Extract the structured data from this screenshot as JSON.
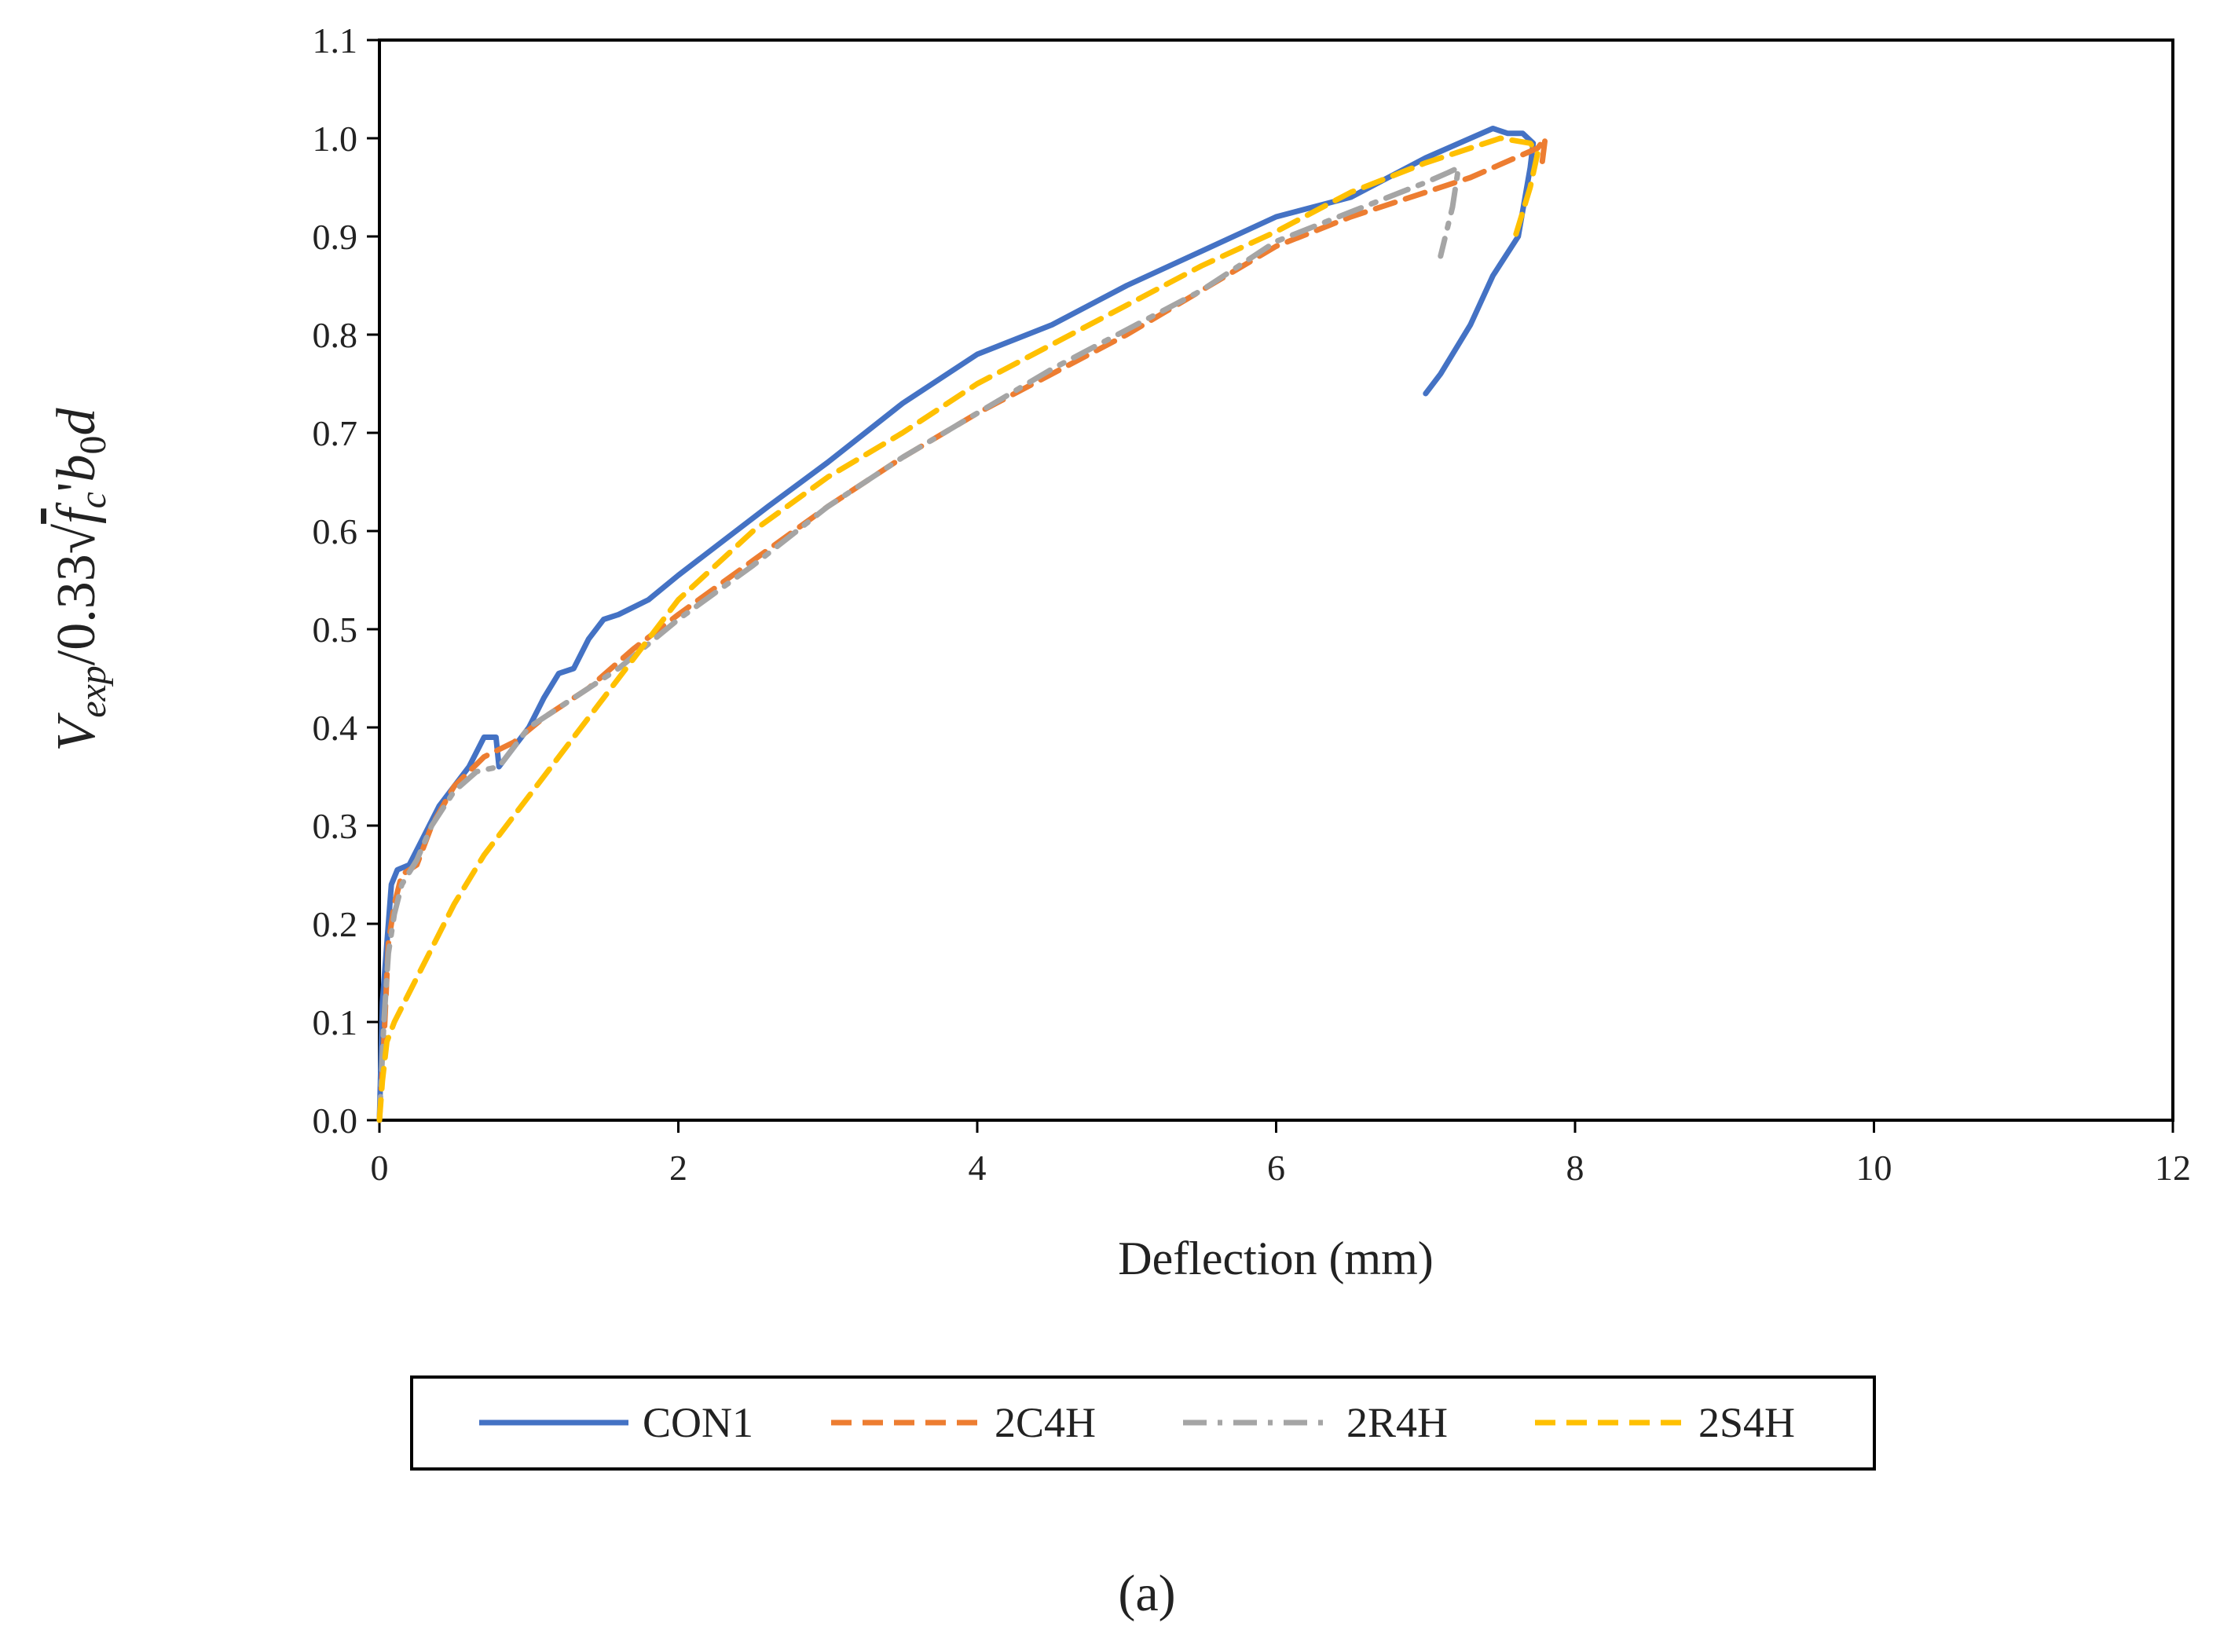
{
  "chart_data": {
    "type": "line",
    "title": "",
    "xlabel": "Deflection (mm)",
    "ylabel": {
      "base": "V",
      "sub": "exp",
      "mid": "/0.33",
      "radicand": "f",
      "radicand_sub": "c",
      "prime": "'",
      "tail_b": "b",
      "tail_sub": "0",
      "tail_d": "d"
    },
    "caption": "(a)",
    "xlim": [
      0,
      12
    ],
    "ylim": [
      0,
      1.1
    ],
    "x_ticks": [
      0,
      2,
      4,
      6,
      8,
      10,
      12
    ],
    "y_ticks": [
      0.0,
      0.1,
      0.2,
      0.3,
      0.4,
      0.5,
      0.6,
      0.7,
      0.8,
      0.9,
      1.0,
      1.1
    ],
    "x_tick_labels": [
      "0",
      "2",
      "4",
      "6",
      "8",
      "10",
      "12"
    ],
    "y_tick_labels": [
      "0.0",
      "0.1",
      "0.2",
      "0.3",
      "0.4",
      "0.5",
      "0.6",
      "0.7",
      "0.8",
      "0.9",
      "1.0",
      "1.1"
    ],
    "grid": false,
    "legend_position": "bottom",
    "series": [
      {
        "name": "CON1",
        "color": "#4472C4",
        "style": "solid",
        "x": [
          0,
          0.02,
          0.05,
          0.08,
          0.12,
          0.2,
          0.3,
          0.4,
          0.5,
          0.6,
          0.7,
          0.78,
          0.8,
          0.9,
          1.0,
          1.1,
          1.2,
          1.3,
          1.4,
          1.5,
          1.6,
          1.8,
          2.0,
          2.3,
          2.6,
          3.0,
          3.5,
          4.0,
          4.5,
          5.0,
          5.5,
          6.0,
          6.5,
          7.0,
          7.3,
          7.45,
          7.55,
          7.65,
          7.72,
          7.7,
          7.62,
          7.45,
          7.3,
          7.1,
          7.0
        ],
        "y": [
          0.0,
          0.12,
          0.18,
          0.24,
          0.255,
          0.26,
          0.29,
          0.32,
          0.34,
          0.36,
          0.39,
          0.39,
          0.36,
          0.38,
          0.4,
          0.43,
          0.455,
          0.46,
          0.49,
          0.51,
          0.515,
          0.53,
          0.555,
          0.59,
          0.625,
          0.67,
          0.73,
          0.78,
          0.81,
          0.85,
          0.885,
          0.92,
          0.94,
          0.98,
          1.0,
          1.01,
          1.005,
          1.005,
          0.995,
          0.97,
          0.9,
          0.86,
          0.81,
          0.76,
          0.74
        ]
      },
      {
        "name": "2C4H",
        "color": "#ED7D31",
        "style": "dashed",
        "x": [
          0,
          0.03,
          0.06,
          0.1,
          0.15,
          0.25,
          0.35,
          0.5,
          0.7,
          0.9,
          1.1,
          1.4,
          1.7,
          2.0,
          2.5,
          3.0,
          3.5,
          4.0,
          4.5,
          5.0,
          5.5,
          6.0,
          6.5,
          7.0,
          7.3,
          7.6,
          7.75,
          7.8,
          7.78
        ],
        "y": [
          0.0,
          0.08,
          0.18,
          0.22,
          0.25,
          0.26,
          0.3,
          0.34,
          0.37,
          0.385,
          0.41,
          0.44,
          0.48,
          0.515,
          0.57,
          0.625,
          0.675,
          0.72,
          0.76,
          0.8,
          0.845,
          0.89,
          0.92,
          0.945,
          0.96,
          0.98,
          0.99,
          1.0,
          0.975
        ]
      },
      {
        "name": "2R4H",
        "color": "#A5A5A5",
        "style": "dashdot",
        "x": [
          0,
          0.03,
          0.06,
          0.1,
          0.15,
          0.25,
          0.35,
          0.5,
          0.65,
          0.8,
          1.0,
          1.3,
          1.6,
          2.0,
          2.5,
          3.0,
          3.5,
          4.0,
          4.5,
          5.0,
          5.5,
          6.0,
          6.5,
          7.0,
          7.15,
          7.22,
          7.18,
          7.1
        ],
        "y": [
          0.0,
          0.1,
          0.17,
          0.21,
          0.24,
          0.265,
          0.3,
          0.335,
          0.355,
          0.36,
          0.4,
          0.43,
          0.46,
          0.51,
          0.565,
          0.625,
          0.675,
          0.72,
          0.765,
          0.805,
          0.845,
          0.895,
          0.925,
          0.955,
          0.965,
          0.97,
          0.93,
          0.88
        ]
      },
      {
        "name": "2S4H",
        "color": "#FFC000",
        "style": "dashed",
        "x": [
          0,
          0.02,
          0.05,
          0.1,
          0.2,
          0.3,
          0.5,
          0.7,
          0.9,
          1.1,
          1.3,
          1.5,
          1.8,
          2.0,
          2.5,
          3.0,
          3.5,
          4.0,
          4.5,
          5.0,
          5.5,
          6.0,
          6.5,
          7.0,
          7.3,
          7.5,
          7.7,
          7.75,
          7.7,
          7.6
        ],
        "y": [
          0.0,
          0.04,
          0.08,
          0.1,
          0.13,
          0.16,
          0.22,
          0.27,
          0.31,
          0.35,
          0.39,
          0.43,
          0.49,
          0.53,
          0.6,
          0.655,
          0.7,
          0.75,
          0.79,
          0.83,
          0.87,
          0.905,
          0.945,
          0.975,
          0.99,
          1.0,
          0.995,
          0.985,
          0.95,
          0.9
        ]
      }
    ]
  }
}
